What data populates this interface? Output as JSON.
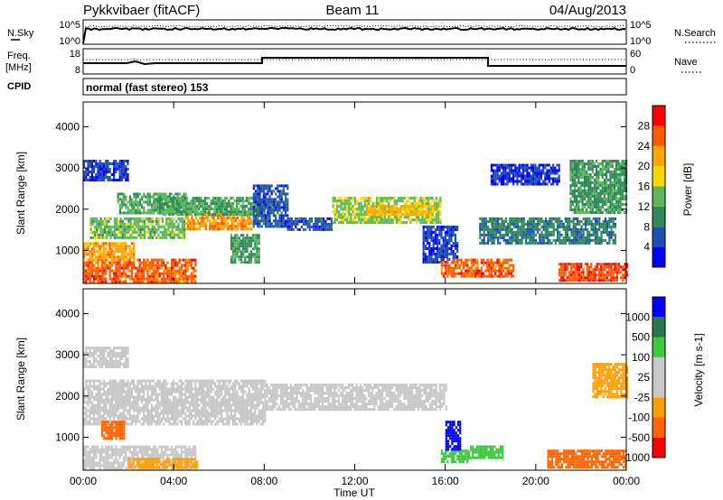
{
  "header": {
    "station": "Pykkvibaer (fitACF)",
    "beam": "Beam 11",
    "date": "04/Aug/2013"
  },
  "nsky_panel": {
    "left_label": "N.Sky",
    "left_ticks": [
      "10^5",
      "10^0"
    ],
    "right_label": "N.Search",
    "right_ticks": [
      "10^5",
      "10^0"
    ]
  },
  "freq_panel": {
    "left_label_line1": "Freq.",
    "left_label_line2": "[MHz]",
    "left_ticks": [
      "18",
      "8"
    ],
    "right_label": "Nave",
    "right_ticks": [
      "60",
      "0"
    ]
  },
  "cpid_panel": {
    "label": "CPID",
    "text": "normal (fast stereo) 153"
  },
  "colors": {
    "power": [
      "#0000ff",
      "#1e50b4",
      "#2e8b57",
      "#5cb85c",
      "#ffd700",
      "#ffa500",
      "#ff5a00",
      "#ff0000"
    ],
    "velocity": [
      "#ff0000",
      "#ff6400",
      "#ffa000",
      "#c8c8c8",
      "#c8c8c8",
      "#3cc83c",
      "#287850",
      "#0000ff"
    ]
  },
  "chart_data": [
    {
      "type": "heatmap",
      "name": "power",
      "xlabel": "",
      "ylabel": "Slant Range [km]",
      "x_range_hours": [
        0,
        24
      ],
      "ylim": [
        200,
        4600
      ],
      "yticks": [
        1000,
        2000,
        3000,
        4000
      ],
      "colorbar": {
        "label": "Power [dB]",
        "ticks": [
          4,
          8,
          12,
          16,
          20,
          24,
          28
        ],
        "range": [
          0,
          32
        ]
      },
      "regions": [
        {
          "t0": 0.0,
          "t1": 5.0,
          "r0": 250,
          "r1": 800,
          "value": 26
        },
        {
          "t0": 0.0,
          "t1": 2.2,
          "r0": 800,
          "r1": 1200,
          "value": 22
        },
        {
          "t0": 0.3,
          "t1": 4.5,
          "r0": 1300,
          "r1": 1800,
          "value": 14
        },
        {
          "t0": 1.5,
          "t1": 4.5,
          "r0": 1900,
          "r1": 2400,
          "value": 13
        },
        {
          "t0": 0.0,
          "t1": 2.0,
          "r0": 2700,
          "r1": 3200,
          "value": 5
        },
        {
          "t0": 4.5,
          "t1": 7.5,
          "r0": 1550,
          "r1": 1950,
          "value": 23
        },
        {
          "t0": 3.5,
          "t1": 8.0,
          "r0": 1900,
          "r1": 2300,
          "value": 12
        },
        {
          "t0": 6.5,
          "t1": 7.8,
          "r0": 700,
          "r1": 1400,
          "value": 11
        },
        {
          "t0": 7.5,
          "t1": 9.0,
          "r0": 1600,
          "r1": 2600,
          "value": 6
        },
        {
          "t0": 9.0,
          "t1": 11.0,
          "r0": 1500,
          "r1": 1800,
          "value": 6
        },
        {
          "t0": 11.0,
          "t1": 15.8,
          "r0": 1700,
          "r1": 2300,
          "value": 15
        },
        {
          "t0": 12.5,
          "t1": 15.5,
          "r0": 1900,
          "r1": 2100,
          "value": 21
        },
        {
          "t0": 15.0,
          "t1": 16.5,
          "r0": 700,
          "r1": 1600,
          "value": 5
        },
        {
          "t0": 15.8,
          "t1": 19.0,
          "r0": 400,
          "r1": 800,
          "value": 26
        },
        {
          "t0": 17.5,
          "t1": 23.5,
          "r0": 1200,
          "r1": 1800,
          "value": 9
        },
        {
          "t0": 21.0,
          "t1": 24.0,
          "r0": 250,
          "r1": 700,
          "value": 27
        },
        {
          "t0": 21.5,
          "t1": 24.0,
          "r0": 1900,
          "r1": 3200,
          "value": 11
        },
        {
          "t0": 18.0,
          "t1": 21.0,
          "r0": 2600,
          "r1": 3100,
          "value": 4
        }
      ]
    },
    {
      "type": "heatmap",
      "name": "velocity",
      "xlabel": "Time UT",
      "ylabel": "Slant Range [km]",
      "x_range_hours": [
        0,
        24
      ],
      "xticks": [
        "00:00",
        "04:00",
        "08:00",
        "12:00",
        "16:00",
        "20:00",
        "00:00"
      ],
      "ylim": [
        200,
        4600
      ],
      "yticks": [
        1000,
        2000,
        3000,
        4000
      ],
      "colorbar": {
        "label": "Velocity [m s-1]",
        "ticks": [
          1000,
          500,
          100,
          25,
          -25,
          -100,
          -500,
          -1000
        ],
        "boundaries": [
          -2000,
          -1000,
          -500,
          -100,
          0,
          100,
          500,
          1000,
          2000
        ]
      },
      "regions": [
        {
          "t0": 0.0,
          "t1": 5.0,
          "r0": 250,
          "r1": 800,
          "value": 10
        },
        {
          "t0": 0.0,
          "t1": 8.0,
          "r0": 1300,
          "r1": 2400,
          "value": 10
        },
        {
          "t0": 0.0,
          "t1": 2.0,
          "r0": 2700,
          "r1": 3200,
          "value": 10
        },
        {
          "t0": 0.8,
          "t1": 1.8,
          "r0": 1000,
          "r1": 1400,
          "value": -600
        },
        {
          "t0": 2.0,
          "t1": 5.0,
          "r0": 300,
          "r1": 500,
          "value": -200
        },
        {
          "t0": 8.0,
          "t1": 16.0,
          "r0": 1700,
          "r1": 2300,
          "value": 5
        },
        {
          "t0": 15.8,
          "t1": 17.0,
          "r0": 400,
          "r1": 700,
          "value": 200
        },
        {
          "t0": 16.0,
          "t1": 16.7,
          "r0": 700,
          "r1": 1400,
          "value": 1200
        },
        {
          "t0": 17.0,
          "t1": 18.5,
          "r0": 500,
          "r1": 800,
          "value": 300
        },
        {
          "t0": 20.5,
          "t1": 24.0,
          "r0": 250,
          "r1": 700,
          "value": -600
        },
        {
          "t0": 22.5,
          "t1": 24.0,
          "r0": 2000,
          "r1": 2800,
          "value": -200
        }
      ]
    }
  ]
}
